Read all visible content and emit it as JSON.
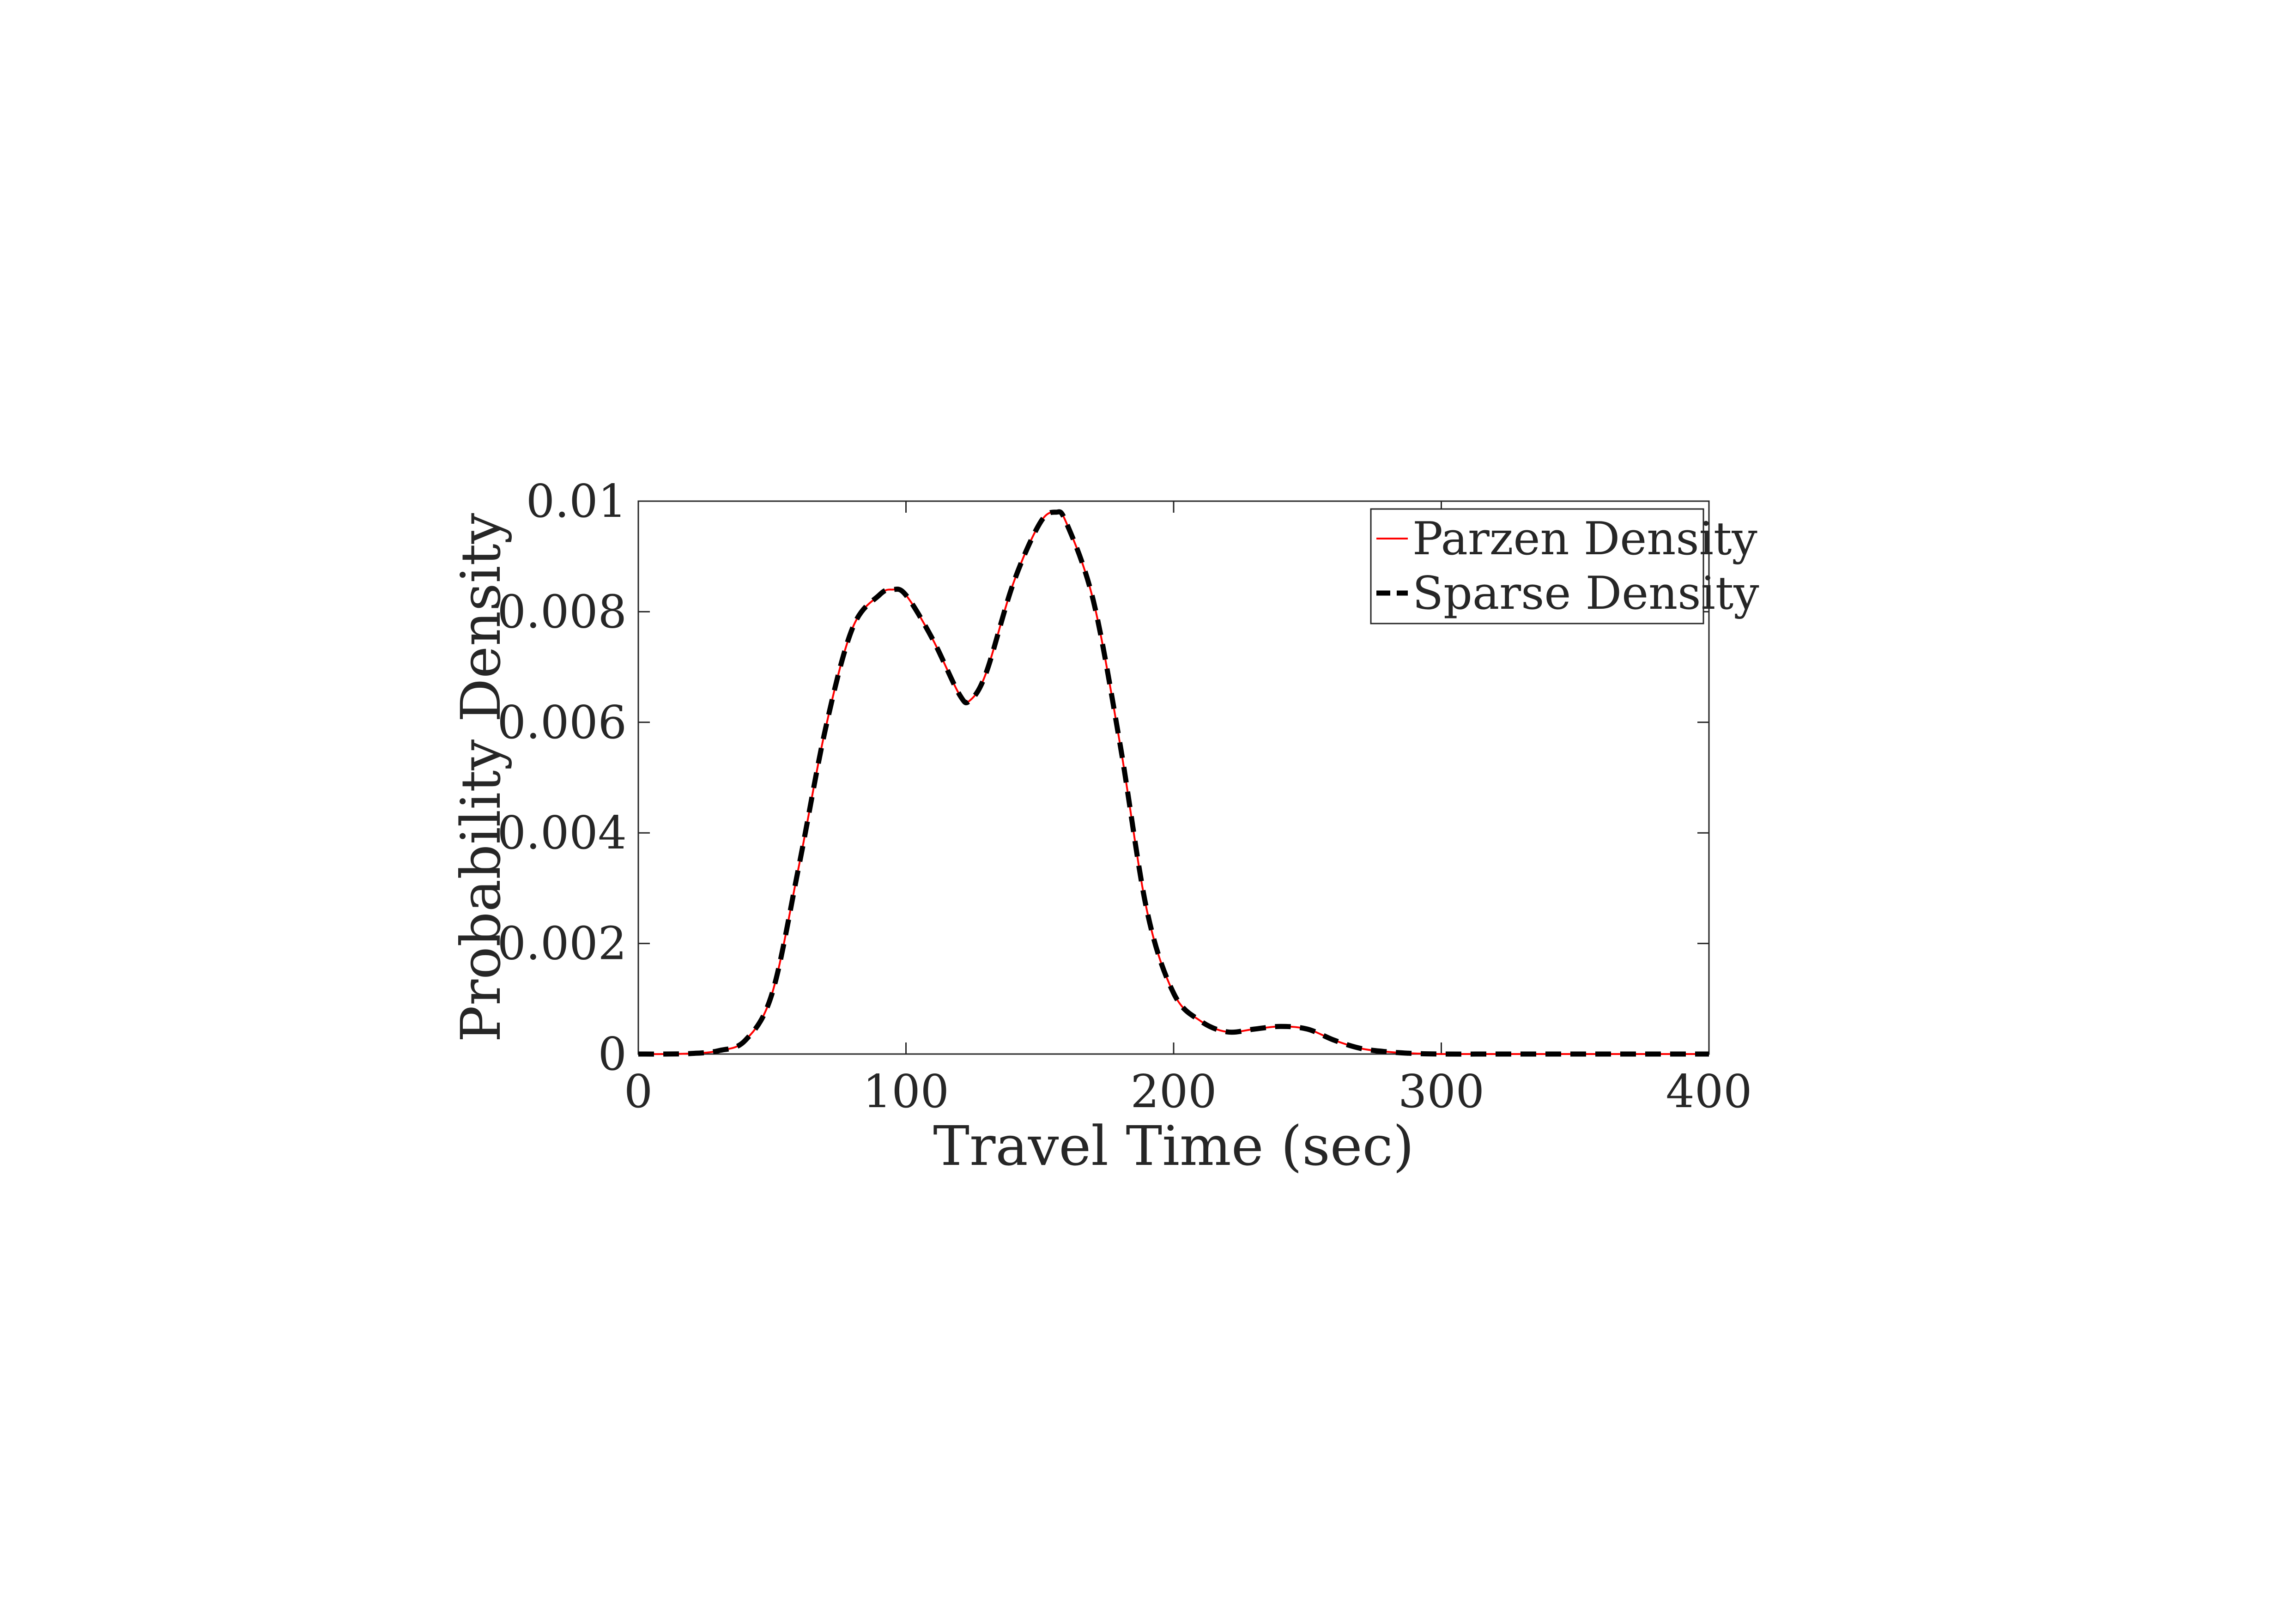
{
  "chart_data": {
    "type": "line",
    "title": "",
    "xlabel": "Travel Time (sec)",
    "ylabel": "Probability Density",
    "xlim": [
      0,
      400
    ],
    "ylim": [
      0,
      0.01
    ],
    "x_ticks": [
      0,
      100,
      200,
      300,
      400
    ],
    "x_tick_labels": [
      "0",
      "100",
      "200",
      "300",
      "400"
    ],
    "y_ticks": [
      0,
      0.002,
      0.004,
      0.006,
      0.008,
      0.01
    ],
    "y_tick_labels": [
      "0",
      "0.002",
      "0.004",
      "0.006",
      "0.008",
      "0.01"
    ],
    "grid": false,
    "legend_position": "top-right",
    "legend": [
      "Parzen Density",
      "Sparse Density"
    ],
    "x": [
      0,
      10,
      20,
      30,
      40,
      50,
      60,
      70,
      80,
      90,
      95,
      100,
      110,
      120,
      124,
      130,
      140,
      150,
      156,
      160,
      170,
      180,
      190,
      200,
      210,
      220,
      230,
      240,
      250,
      260,
      270,
      280,
      290,
      300,
      320,
      340,
      360,
      380,
      400
    ],
    "series": [
      {
        "name": "Parzen Density",
        "color": "#ff0000",
        "style": "solid",
        "values": [
          0,
          0,
          1e-05,
          6e-05,
          0.00025,
          0.0011,
          0.0034,
          0.0059,
          0.0077,
          0.0083,
          0.0084,
          0.0083,
          0.0075,
          0.0065,
          0.0064,
          0.0069,
          0.0085,
          0.0096,
          0.0098,
          0.0096,
          0.0082,
          0.0056,
          0.0026,
          0.0011,
          0.0006,
          0.0004,
          0.00045,
          0.0005,
          0.00045,
          0.00025,
          0.0001,
          4e-05,
          1e-05,
          0,
          0,
          0,
          0,
          0,
          0
        ]
      },
      {
        "name": "Sparse Density",
        "color": "#000000",
        "style": "dashed",
        "values": [
          0,
          0,
          1e-05,
          6e-05,
          0.00025,
          0.0011,
          0.0034,
          0.0059,
          0.0077,
          0.0083,
          0.0084,
          0.0083,
          0.0075,
          0.0065,
          0.0064,
          0.0069,
          0.0085,
          0.0096,
          0.0098,
          0.0096,
          0.0082,
          0.0056,
          0.0026,
          0.0011,
          0.0006,
          0.0004,
          0.00045,
          0.0005,
          0.00045,
          0.00025,
          0.0001,
          4e-05,
          1e-05,
          0,
          0,
          0,
          0,
          0,
          0
        ]
      }
    ]
  }
}
